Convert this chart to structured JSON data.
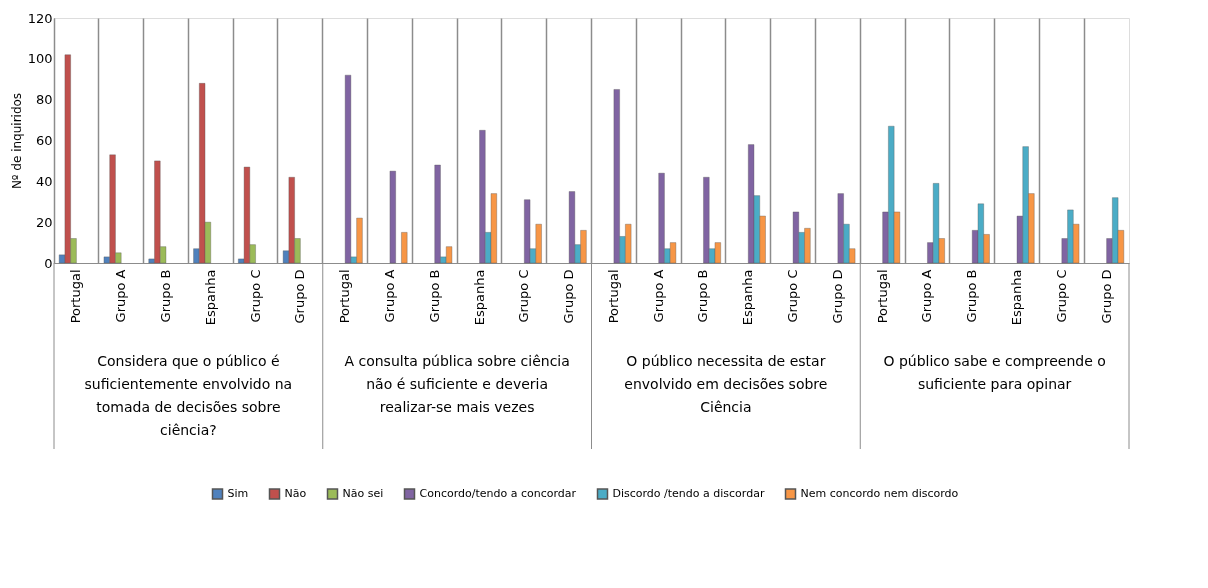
{
  "chart_data": {
    "type": "bar",
    "ylabel": "Nº de inquiridos",
    "categories": [
      "Portugal",
      "Grupo A",
      "Grupo B",
      "Espanha",
      "Grupo C",
      "Grupo D",
      "Portugal",
      "Grupo A",
      "Grupo B",
      "Espanha",
      "Grupo C",
      "Grupo D",
      "Portugal",
      "Grupo A",
      "Grupo B",
      "Espanha",
      "Grupo C",
      "Grupo D",
      "Portugal",
      "Grupo A",
      "Grupo B",
      "Espanha",
      "Grupo C",
      "Grupo D"
    ],
    "annotations": [
      "Considera que o público é suficientemente envolvido na tomada de decisões sobre ciência?",
      "A consulta pública sobre ciência não é suficiente e deveria realizar-se mais vezes",
      "O público necessita de estar envolvido em decisões sobre Ciência",
      "O público sabe e compreende o suficiente para opinar"
    ],
    "series": [
      {
        "name": "Sim",
        "color": "#4f81bd",
        "values": [
          4,
          3,
          2,
          7,
          2,
          6,
          null,
          null,
          null,
          null,
          null,
          null,
          null,
          null,
          null,
          null,
          null,
          null,
          null,
          null,
          null,
          null,
          null,
          null
        ]
      },
      {
        "name": "Não",
        "color": "#c0504d",
        "values": [
          102,
          53,
          50,
          88,
          47,
          42,
          null,
          null,
          null,
          null,
          null,
          null,
          null,
          null,
          null,
          null,
          null,
          null,
          null,
          null,
          null,
          null,
          null,
          null
        ]
      },
      {
        "name": "Não sei",
        "color": "#9bbb59",
        "values": [
          12,
          5,
          8,
          20,
          9,
          12,
          null,
          null,
          null,
          null,
          null,
          null,
          null,
          null,
          null,
          null,
          null,
          null,
          null,
          null,
          null,
          null,
          null,
          null
        ]
      },
      {
        "name": "Concordo/tendo a concordar",
        "color": "#8064a2",
        "values": [
          null,
          null,
          null,
          null,
          null,
          null,
          92,
          45,
          48,
          65,
          31,
          35,
          85,
          44,
          42,
          58,
          25,
          34,
          25,
          10,
          16,
          23,
          12,
          12
        ]
      },
      {
        "name": "Discordo /tendo a discordar",
        "color": "#4bacc6",
        "values": [
          null,
          null,
          null,
          null,
          null,
          null,
          3,
          null,
          3,
          15,
          7,
          9,
          13,
          7,
          7,
          33,
          15,
          19,
          67,
          39,
          29,
          57,
          26,
          32
        ]
      },
      {
        "name": "Nem concordo nem discordo",
        "color": "#f79646",
        "values": [
          null,
          null,
          null,
          null,
          null,
          null,
          22,
          15,
          8,
          34,
          19,
          16,
          19,
          10,
          10,
          23,
          17,
          7,
          25,
          12,
          14,
          34,
          19,
          16
        ]
      }
    ],
    "ylim": [
      0,
      120
    ],
    "yticks": [
      0,
      20,
      40,
      60,
      80,
      100,
      120
    ],
    "grid": "x",
    "legend": "bottom"
  }
}
